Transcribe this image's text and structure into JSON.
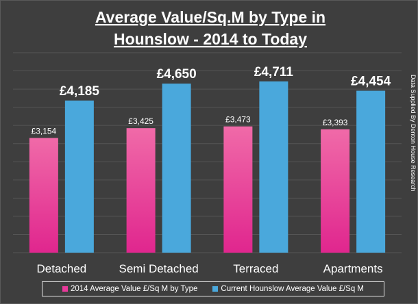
{
  "chart_data": {
    "type": "bar",
    "title_lines": [
      "Average Value/Sq.M by Type in",
      "Hounslow - 2014 to Today"
    ],
    "categories": [
      "Detached",
      "Semi Detached",
      "Terraced",
      "Apartments"
    ],
    "series": [
      {
        "name": "2014 Average Value £/Sq M by Type",
        "values": [
          3154,
          3425,
          3473,
          3393
        ],
        "labels": [
          "£3,154",
          "£3,425",
          "£3,473",
          "£3,393"
        ],
        "color": "#e8399a"
      },
      {
        "name": "Current Hounslow Average Value £/Sq M",
        "values": [
          4185,
          4650,
          4711,
          4454
        ],
        "labels": [
          "£4,185",
          "£4,650",
          "£4,711",
          "£4,454"
        ],
        "color": "#4aa8dc"
      }
    ],
    "ylim": [
      0,
      5500
    ],
    "grid": true,
    "legend_position": "bottom",
    "side_note": "Data Supplied By Denton House Research",
    "colors": {
      "background": "#3e3e3e",
      "gridline": "#555555",
      "text": "#ffffff"
    }
  }
}
